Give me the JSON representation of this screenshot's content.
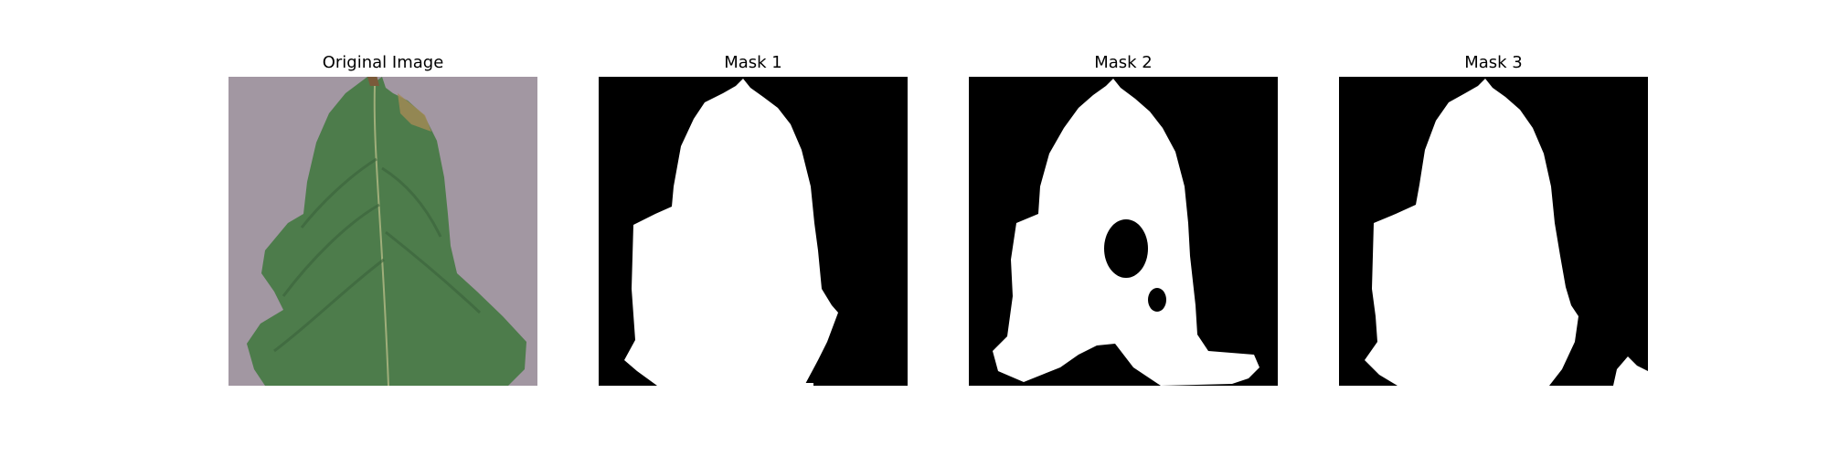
{
  "figure": {
    "panels": [
      {
        "title": "Original Image",
        "content": "tomato-leaf-photo"
      },
      {
        "title": "Mask 1",
        "content": "binary-mask"
      },
      {
        "title": "Mask 2",
        "content": "binary-mask"
      },
      {
        "title": "Mask 3",
        "content": "binary-mask"
      }
    ]
  },
  "colors": {
    "background": "#ffffff",
    "mask_background": "#000000",
    "mask_foreground": "#ffffff",
    "photo_background": "#a89ea7",
    "leaf": "#4d7c4b",
    "leaf_dark": "#3b633a",
    "vein": "#9fae7a",
    "lesion": "#a58a55"
  }
}
